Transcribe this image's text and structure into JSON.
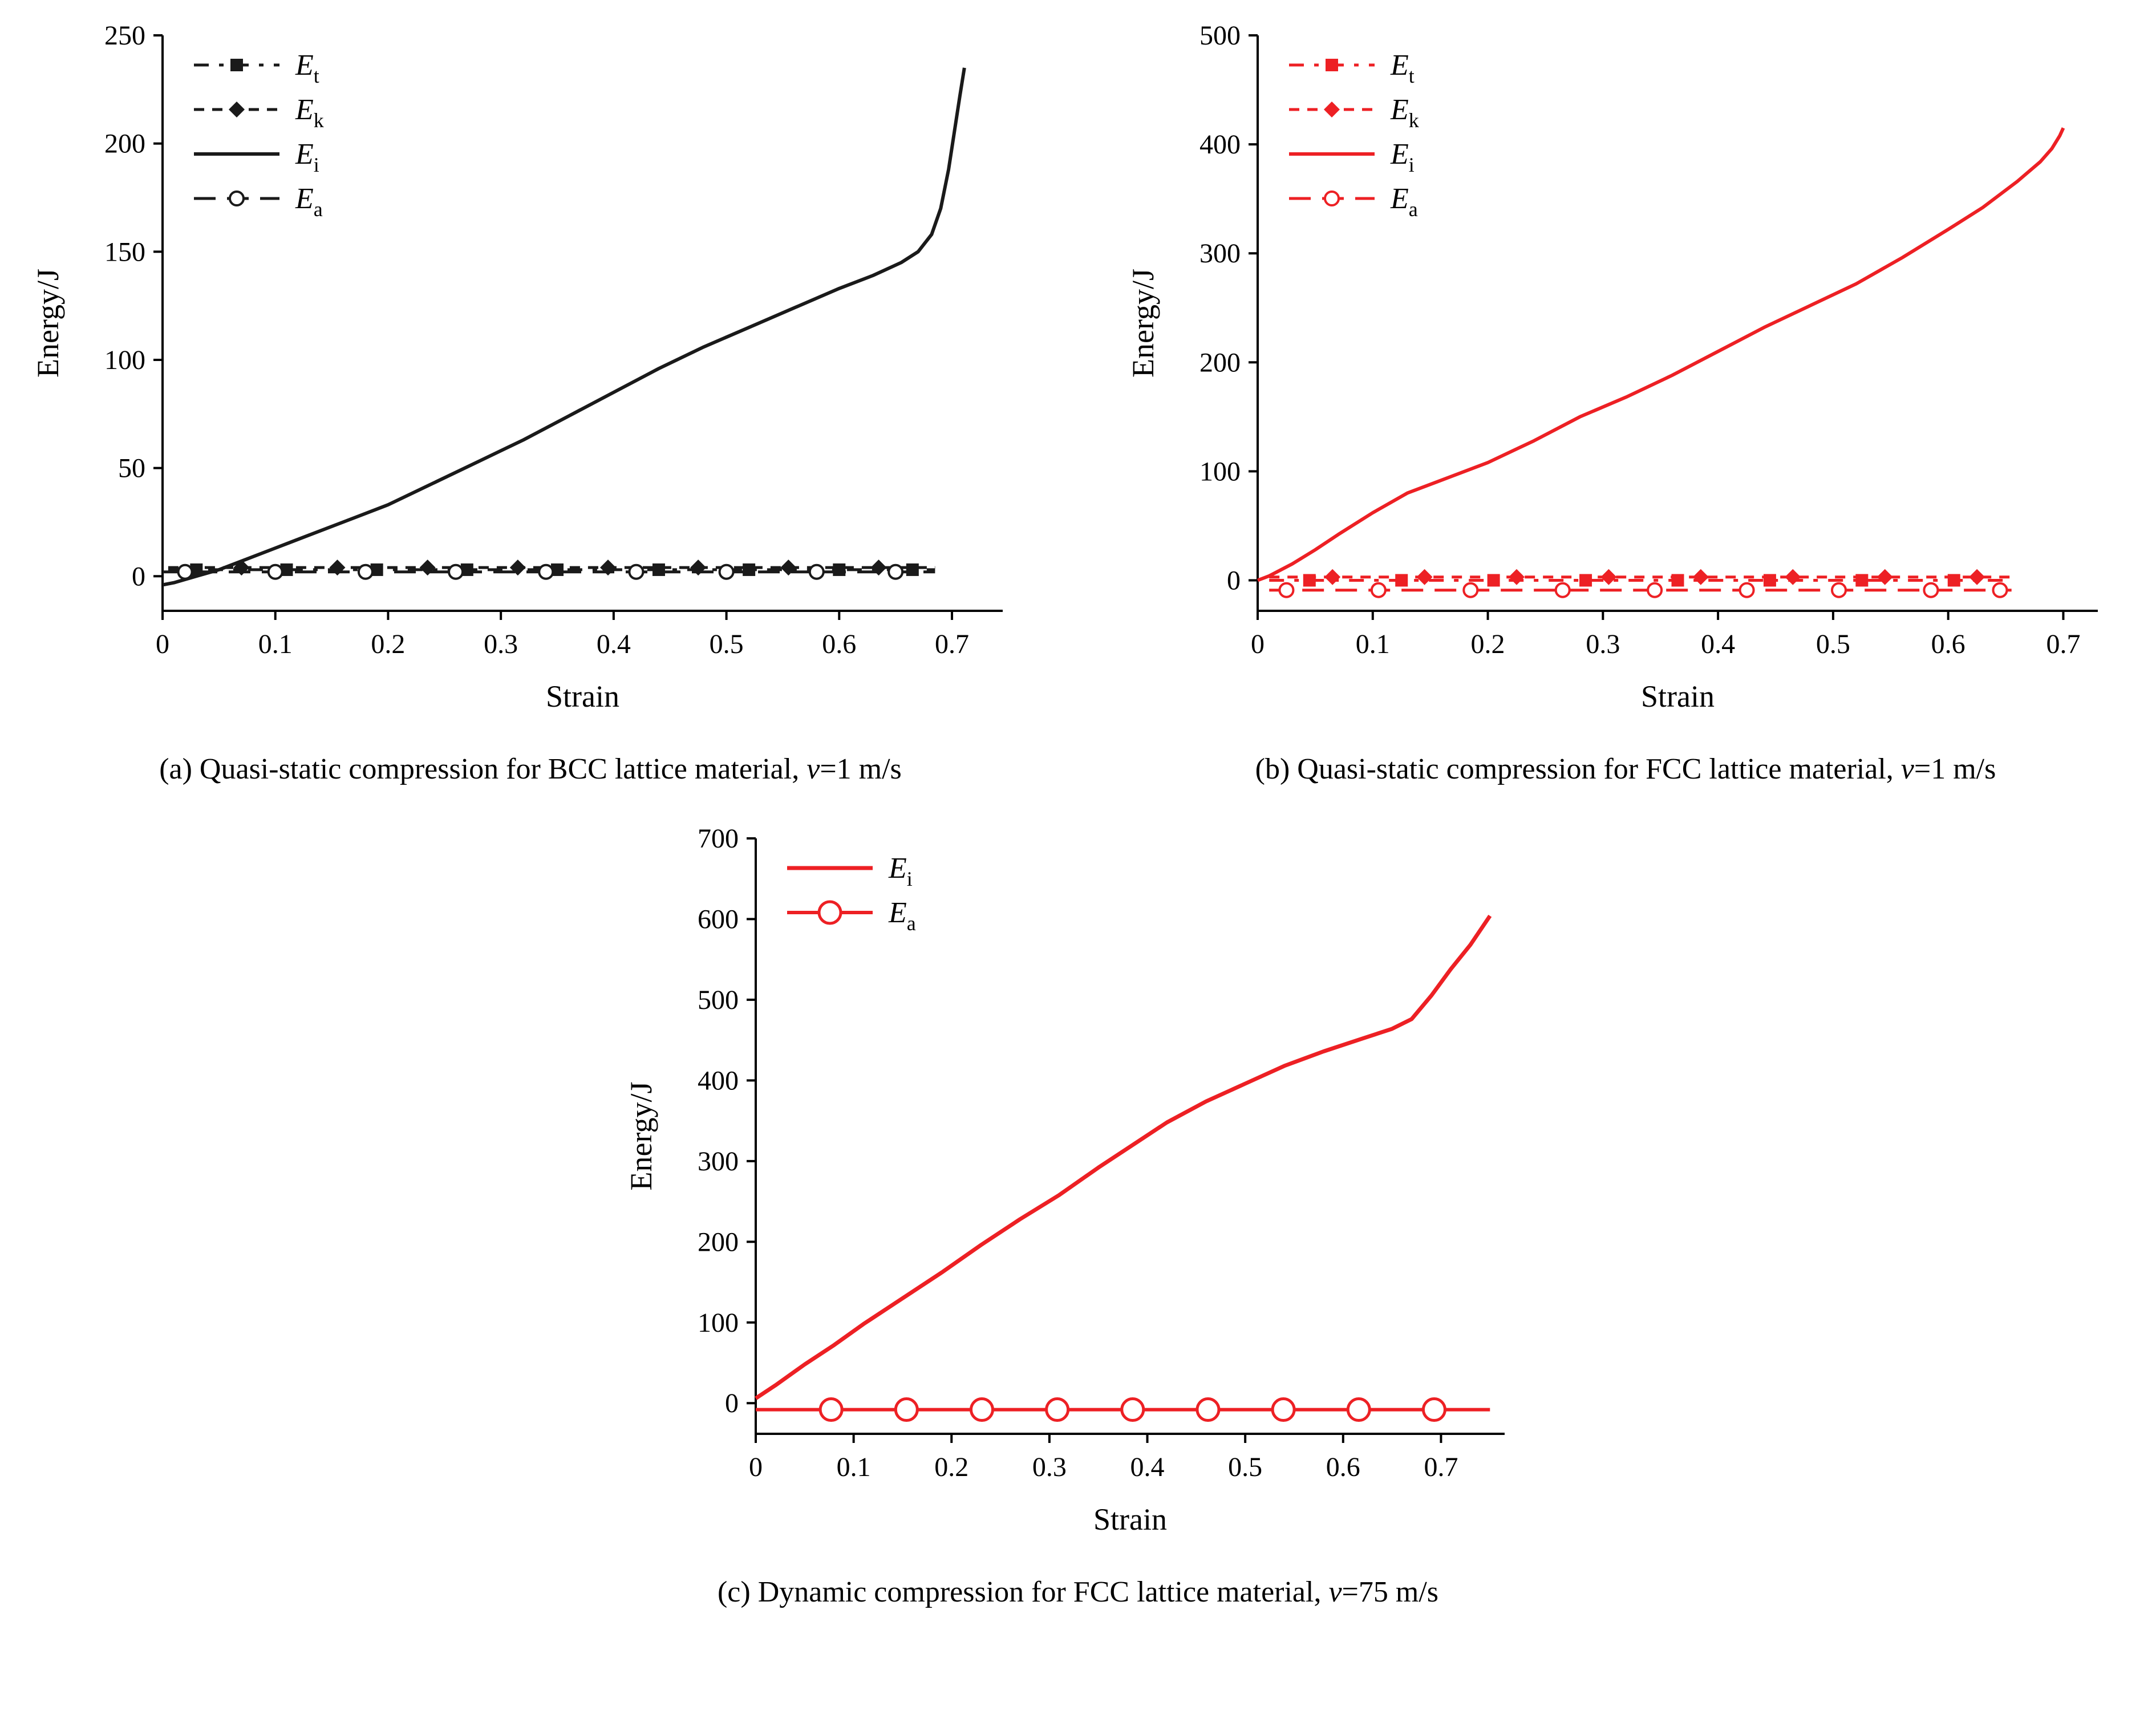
{
  "chart_data": [
    {
      "id": "a",
      "type": "line",
      "caption": {
        "main": "(a) Quasi-static compression for BCC lattice material, ",
        "v": "v",
        "suffix": "=1 m/s"
      },
      "xlabel": "Strain",
      "ylabel": "Energy/J",
      "xlim": [
        0,
        0.745
      ],
      "ylim": [
        -16,
        250
      ],
      "xticks": [
        0,
        0.1,
        0.2,
        0.3,
        0.4,
        0.5,
        0.6,
        0.7
      ],
      "yticks": [
        0,
        50,
        100,
        150,
        200,
        250
      ],
      "legend_position": "top-left",
      "grid": false,
      "series": [
        {
          "label_main": "E",
          "label_sub": "t",
          "color": "#1a1a1a",
          "dash": "26 18 8 18",
          "marker": "square",
          "width": 5,
          "points": [
            [
              0.005,
              3
            ],
            [
              0.685,
              3
            ]
          ],
          "markers_at": [
            [
              0.03,
              3
            ],
            [
              0.11,
              3
            ],
            [
              0.19,
              3
            ],
            [
              0.27,
              3
            ],
            [
              0.35,
              3
            ],
            [
              0.44,
              3
            ],
            [
              0.52,
              3
            ],
            [
              0.6,
              3
            ],
            [
              0.665,
              3
            ]
          ]
        },
        {
          "label_main": "E",
          "label_sub": "k",
          "color": "#1a1a1a",
          "dash": "18 14",
          "marker": "diamond",
          "width": 5,
          "points": [
            [
              0.005,
              4
            ],
            [
              0.685,
              4
            ]
          ],
          "markers_at": [
            [
              0.07,
              4
            ],
            [
              0.155,
              4
            ],
            [
              0.235,
              4
            ],
            [
              0.315,
              4
            ],
            [
              0.395,
              4
            ],
            [
              0.475,
              4
            ],
            [
              0.555,
              4
            ],
            [
              0.635,
              4
            ]
          ]
        },
        {
          "label_main": "E",
          "label_sub": "i",
          "color": "#1a1a1a",
          "dash": null,
          "marker": null,
          "width": 6,
          "points": [
            [
              0,
              -4
            ],
            [
              0.01,
              -3
            ],
            [
              0.02,
              -1.5
            ],
            [
              0.03,
              0
            ],
            [
              0.05,
              3
            ],
            [
              0.07,
              7
            ],
            [
              0.1,
              13
            ],
            [
              0.13,
              19
            ],
            [
              0.16,
              25
            ],
            [
              0.2,
              33
            ],
            [
              0.24,
              43
            ],
            [
              0.28,
              53
            ],
            [
              0.32,
              63
            ],
            [
              0.36,
              74
            ],
            [
              0.4,
              85
            ],
            [
              0.44,
              96
            ],
            [
              0.48,
              106
            ],
            [
              0.52,
              115
            ],
            [
              0.56,
              124
            ],
            [
              0.6,
              133
            ],
            [
              0.63,
              139
            ],
            [
              0.655,
              145
            ],
            [
              0.67,
              150
            ],
            [
              0.682,
              158
            ],
            [
              0.69,
              170
            ],
            [
              0.697,
              188
            ],
            [
              0.702,
              205
            ],
            [
              0.707,
              222
            ],
            [
              0.711,
              235
            ]
          ],
          "markers_at": []
        },
        {
          "label_main": "E",
          "label_sub": "a",
          "color": "#1a1a1a",
          "dash": "38 20",
          "marker": "circle",
          "width": 5,
          "points": [
            [
              0,
              2
            ],
            [
              0.685,
              2
            ]
          ],
          "markers_at": [
            [
              0.02,
              2
            ],
            [
              0.1,
              2
            ],
            [
              0.18,
              2
            ],
            [
              0.26,
              2
            ],
            [
              0.34,
              2
            ],
            [
              0.42,
              2
            ],
            [
              0.5,
              2
            ],
            [
              0.58,
              2
            ],
            [
              0.65,
              2
            ]
          ]
        }
      ]
    },
    {
      "id": "b",
      "type": "line",
      "caption": {
        "main": "(b) Quasi-static compression for FCC lattice material, ",
        "v": "v",
        "suffix": "=1 m/s"
      },
      "xlabel": "Strain",
      "ylabel": "Energy/J",
      "xlim": [
        0,
        0.73
      ],
      "ylim": [
        -28,
        500
      ],
      "xticks": [
        0,
        0.1,
        0.2,
        0.3,
        0.4,
        0.5,
        0.6,
        0.7
      ],
      "yticks": [
        0,
        100,
        200,
        300,
        400,
        500
      ],
      "legend_position": "top-left",
      "grid": false,
      "series": [
        {
          "label_main": "E",
          "label_sub": "t",
          "color": "#ed2024",
          "dash": "26 18 8 18",
          "marker": "square",
          "width": 5,
          "points": [
            [
              0.01,
              0
            ],
            [
              0.655,
              0
            ]
          ],
          "markers_at": [
            [
              0.045,
              0
            ],
            [
              0.125,
              0
            ],
            [
              0.205,
              0
            ],
            [
              0.285,
              0
            ],
            [
              0.365,
              0
            ],
            [
              0.445,
              0
            ],
            [
              0.525,
              0
            ],
            [
              0.605,
              0
            ]
          ]
        },
        {
          "label_main": "E",
          "label_sub": "k",
          "color": "#ed2024",
          "dash": "18 14",
          "marker": "diamond",
          "width": 5,
          "points": [
            [
              0.01,
              3
            ],
            [
              0.655,
              3
            ]
          ],
          "markers_at": [
            [
              0.065,
              3
            ],
            [
              0.145,
              3
            ],
            [
              0.225,
              3
            ],
            [
              0.305,
              3
            ],
            [
              0.385,
              3
            ],
            [
              0.465,
              3
            ],
            [
              0.545,
              3
            ],
            [
              0.625,
              3
            ]
          ]
        },
        {
          "label_main": "E",
          "label_sub": "i",
          "color": "#ed2024",
          "dash": null,
          "marker": null,
          "width": 6,
          "points": [
            [
              0,
              0
            ],
            [
              0.01,
              4
            ],
            [
              0.03,
              15
            ],
            [
              0.05,
              28
            ],
            [
              0.07,
              42
            ],
            [
              0.1,
              62
            ],
            [
              0.13,
              80
            ],
            [
              0.16,
              92
            ],
            [
              0.2,
              108
            ],
            [
              0.24,
              128
            ],
            [
              0.28,
              150
            ],
            [
              0.32,
              168
            ],
            [
              0.36,
              188
            ],
            [
              0.4,
              210
            ],
            [
              0.44,
              232
            ],
            [
              0.48,
              252
            ],
            [
              0.52,
              272
            ],
            [
              0.56,
              296
            ],
            [
              0.6,
              322
            ],
            [
              0.63,
              342
            ],
            [
              0.66,
              366
            ],
            [
              0.68,
              384
            ],
            [
              0.69,
              396
            ],
            [
              0.697,
              408
            ],
            [
              0.7,
              415
            ]
          ],
          "markers_at": []
        },
        {
          "label_main": "E",
          "label_sub": "a",
          "color": "#ed2024",
          "dash": "38 20",
          "marker": "circle",
          "width": 5,
          "points": [
            [
              0.01,
              -9
            ],
            [
              0.655,
              -9
            ]
          ],
          "markers_at": [
            [
              0.025,
              -9
            ],
            [
              0.105,
              -9
            ],
            [
              0.185,
              -9
            ],
            [
              0.265,
              -9
            ],
            [
              0.345,
              -9
            ],
            [
              0.425,
              -9
            ],
            [
              0.505,
              -9
            ],
            [
              0.585,
              -9
            ],
            [
              0.645,
              -9
            ]
          ]
        }
      ]
    },
    {
      "id": "c",
      "type": "line",
      "caption": {
        "main": "(c) Dynamic compression for FCC lattice material, ",
        "v": "v",
        "suffix": "=75 m/s"
      },
      "xlabel": "Strain",
      "ylabel": "Energy/J",
      "xlim": [
        0,
        0.765
      ],
      "ylim": [
        -38,
        700
      ],
      "xticks": [
        0,
        0.1,
        0.2,
        0.3,
        0.4,
        0.5,
        0.6,
        0.7
      ],
      "yticks": [
        0,
        100,
        200,
        300,
        400,
        500,
        600,
        700
      ],
      "legend_position": "top-left",
      "grid": false,
      "series": [
        {
          "label_main": "E",
          "label_sub": "i",
          "color": "#ed2024",
          "dash": null,
          "marker": null,
          "width": 7,
          "points": [
            [
              0,
              6
            ],
            [
              0.02,
              22
            ],
            [
              0.05,
              48
            ],
            [
              0.08,
              72
            ],
            [
              0.11,
              98
            ],
            [
              0.15,
              130
            ],
            [
              0.19,
              162
            ],
            [
              0.23,
              196
            ],
            [
              0.27,
              228
            ],
            [
              0.31,
              258
            ],
            [
              0.35,
              292
            ],
            [
              0.39,
              324
            ],
            [
              0.42,
              348
            ],
            [
              0.46,
              374
            ],
            [
              0.5,
              396
            ],
            [
              0.54,
              418
            ],
            [
              0.58,
              436
            ],
            [
              0.62,
              452
            ],
            [
              0.65,
              464
            ],
            [
              0.67,
              476
            ],
            [
              0.69,
              505
            ],
            [
              0.71,
              538
            ],
            [
              0.73,
              568
            ],
            [
              0.75,
              604
            ]
          ],
          "markers_at": []
        },
        {
          "label_main": "E",
          "label_sub": "a",
          "color": "#ed2024",
          "dash": null,
          "marker": "circle-lg",
          "width": 6,
          "points": [
            [
              0,
              -8
            ],
            [
              0.75,
              -8
            ]
          ],
          "markers_at": [
            [
              0.077,
              -8
            ],
            [
              0.154,
              -8
            ],
            [
              0.231,
              -8
            ],
            [
              0.308,
              -8
            ],
            [
              0.385,
              -8
            ],
            [
              0.462,
              -8
            ],
            [
              0.539,
              -8
            ],
            [
              0.616,
              -8
            ],
            [
              0.693,
              -8
            ]
          ]
        }
      ]
    }
  ],
  "colors": {
    "axis": "#000000",
    "black_series": "#1a1a1a",
    "red_series": "#ed2024"
  }
}
